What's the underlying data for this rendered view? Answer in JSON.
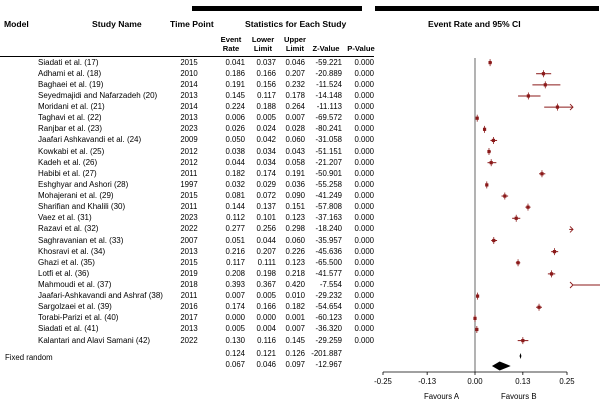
{
  "headers": {
    "model": "Model",
    "study_name": "Study Name",
    "time_point": "Time Point",
    "stats": "Statistics for Each Study",
    "ci": "Event Rate and 95% CI",
    "event_rate": [
      "Event",
      "Rate"
    ],
    "lower_limit": [
      "Lower",
      "Limit"
    ],
    "upper_limit": [
      "Upper",
      "Limit"
    ],
    "z_value": "Z-Value",
    "p_value": "P-Value"
  },
  "studies": [
    {
      "name": "Siadati et al. (17)",
      "year": "2015",
      "er": "0.041",
      "ll": "0.037",
      "ul": "0.046",
      "z": "-59.221",
      "p": "0.000"
    },
    {
      "name": "Adhami et al. (18)",
      "year": "2010",
      "er": "0.186",
      "ll": "0.166",
      "ul": "0.207",
      "z": "-20.889",
      "p": "0.000"
    },
    {
      "name": "Baghaei et al. (19)",
      "year": "2014",
      "er": "0.191",
      "ll": "0.156",
      "ul": "0.232",
      "z": "-11.524",
      "p": "0.000"
    },
    {
      "name": "Seyedmajidi and Nafarzadeh (20)",
      "year": "2013",
      "er": "0.145",
      "ll": "0.117",
      "ul": "0.178",
      "z": "-14.148",
      "p": "0.000"
    },
    {
      "name": "Moridani et al. (21)",
      "year": "2014",
      "er": "0.224",
      "ll": "0.188",
      "ul": "0.264",
      "z": "-11.113",
      "p": "0.000"
    },
    {
      "name": "Taghavi et al. (22)",
      "year": "2013",
      "er": "0.006",
      "ll": "0.005",
      "ul": "0.007",
      "z": "-69.572",
      "p": "0.000"
    },
    {
      "name": "Ranjbar et al. (23)",
      "year": "2023",
      "er": "0.026",
      "ll": "0.024",
      "ul": "0.028",
      "z": "-80.241",
      "p": "0.000"
    },
    {
      "name": "Jaafari Ashkavandi et al. (24)",
      "year": "2009",
      "er": "0.050",
      "ll": "0.042",
      "ul": "0.060",
      "z": "-31.058",
      "p": "0.000"
    },
    {
      "name": "Kowkabi et al. (25)",
      "year": "2012",
      "er": "0.038",
      "ll": "0.034",
      "ul": "0.043",
      "z": "-51.151",
      "p": "0.000"
    },
    {
      "name": "Kadeh et al. (26)",
      "year": "2012",
      "er": "0.044",
      "ll": "0.034",
      "ul": "0.058",
      "z": "-21.207",
      "p": "0.000"
    },
    {
      "name": "Habibi et al. (27)",
      "year": "2011",
      "er": "0.182",
      "ll": "0.174",
      "ul": "0.191",
      "z": "-50.901",
      "p": "0.000"
    },
    {
      "name": "Eshghyar and Ashori (28)",
      "year": "1997",
      "er": "0.032",
      "ll": "0.029",
      "ul": "0.036",
      "z": "-55.258",
      "p": "0.000"
    },
    {
      "name": "Mohajerani et al. (29)",
      "year": "2015",
      "er": "0.081",
      "ll": "0.072",
      "ul": "0.090",
      "z": "-41.249",
      "p": "0.000"
    },
    {
      "name": "Sharifian and Khalili (30)",
      "year": "2011",
      "er": "0.144",
      "ll": "0.137",
      "ul": "0.151",
      "z": "-57.808",
      "p": "0.000"
    },
    {
      "name": "Vaez et al. (31)",
      "year": "2023",
      "er": "0.112",
      "ll": "0.101",
      "ul": "0.123",
      "z": "-37.163",
      "p": "0.000"
    },
    {
      "name": "Razavi et al. (32)",
      "year": "2022",
      "er": "0.277",
      "ll": "0.256",
      "ul": "0.298",
      "z": "-18.240",
      "p": "0.000"
    },
    {
      "name": "Saghravanian et al. (33)",
      "year": "2007",
      "er": "0.051",
      "ll": "0.044",
      "ul": "0.060",
      "z": "-35.957",
      "p": "0.000"
    },
    {
      "name": "Khosravi et al. (34)",
      "year": "2013",
      "er": "0.216",
      "ll": "0.207",
      "ul": "0.226",
      "z": "-45.636",
      "p": "0.000"
    },
    {
      "name": "Ghazi et al. (35)",
      "year": "2015",
      "er": "0.117",
      "ll": "0.111",
      "ul": "0.123",
      "z": "-65.500",
      "p": "0.000"
    },
    {
      "name": "Lotfi et al. (36)",
      "year": "2019",
      "er": "0.208",
      "ll": "0.198",
      "ul": "0.218",
      "z": "-41.577",
      "p": "0.000"
    },
    {
      "name": "Mahmoudi et al. (37)",
      "year": "2018",
      "er": "0.393",
      "ll": "0.367",
      "ul": "0.420",
      "z": "-7.554",
      "p": "0.000"
    },
    {
      "name": "Jaafari-Ashkavandi and Ashraf (38)",
      "year": "2011",
      "er": "0.007",
      "ll": "0.005",
      "ul": "0.010",
      "z": "-29.232",
      "p": "0.000"
    },
    {
      "name": "Sargolzaei et al. (39)",
      "year": "2016",
      "er": "0.174",
      "ll": "0.166",
      "ul": "0.182",
      "z": "-54.654",
      "p": "0.000"
    },
    {
      "name": "Torabi-Parizi et al. (40)",
      "year": "2017",
      "er": "0.000",
      "ll": "0.000",
      "ul": "0.001",
      "z": "-60.123",
      "p": "0.000"
    },
    {
      "name": "Siadati et al. (41)",
      "year": "2013",
      "er": "0.005",
      "ll": "0.004",
      "ul": "0.007",
      "z": "-36.320",
      "p": "0.000"
    },
    {
      "name": "Kalantari and Alavi Samani (42)",
      "year": "2022",
      "er": "0.130",
      "ll": "0.116",
      "ul": "0.145",
      "z": "-29.259",
      "p": "0.000"
    }
  ],
  "summary": {
    "label": "Fixed random",
    "fixed": {
      "er": "0.124",
      "ll": "0.121",
      "ul": "0.126",
      "z": "-201.887"
    },
    "random": {
      "er": "0.067",
      "ll": "0.046",
      "ul": "0.097",
      "z": "-12.967"
    }
  },
  "axis": {
    "ticks": [
      "-0.25",
      "-0.13",
      "0.00",
      "0.13",
      "0.25"
    ],
    "favours_a": "Favours A",
    "favours_b": "Favours B"
  },
  "colors": {
    "marker": "#8b1a1a",
    "line": "#000000"
  },
  "chart_data": {
    "type": "forest",
    "title": "Event Rate and 95% CI",
    "xlim": [
      -0.25,
      0.25
    ],
    "xticks": [
      -0.25,
      -0.13,
      0.0,
      0.13,
      0.25
    ],
    "measure": "event rate",
    "categories": [
      "Siadati et al. (17)",
      "Adhami et al. (18)",
      "Baghaei et al. (19)",
      "Seyedmajidi and Nafarzadeh (20)",
      "Moridani et al. (21)",
      "Taghavi et al. (22)",
      "Ranjbar et al. (23)",
      "Jaafari Ashkavandi et al. (24)",
      "Kowkabi et al. (25)",
      "Kadeh et al. (26)",
      "Habibi et al. (27)",
      "Eshghyar and Ashori (28)",
      "Mohajerani et al. (29)",
      "Sharifian and Khalili (30)",
      "Vaez et al. (31)",
      "Razavi et al. (32)",
      "Saghravanian et al. (33)",
      "Khosravi et al. (34)",
      "Ghazi et al. (35)",
      "Lotfi et al. (36)",
      "Mahmoudi et al. (37)",
      "Jaafari-Ashkavandi and Ashraf (38)",
      "Sargolzaei et al. (39)",
      "Torabi-Parizi et al. (40)",
      "Siadati et al. (41)",
      "Kalantari and Alavi Samani (42)"
    ],
    "event_rate": [
      0.041,
      0.186,
      0.191,
      0.145,
      0.224,
      0.006,
      0.026,
      0.05,
      0.038,
      0.044,
      0.182,
      0.032,
      0.081,
      0.144,
      0.112,
      0.277,
      0.051,
      0.216,
      0.117,
      0.208,
      0.393,
      0.007,
      0.174,
      0.0,
      0.005,
      0.13
    ],
    "lower": [
      0.037,
      0.166,
      0.156,
      0.117,
      0.188,
      0.005,
      0.024,
      0.042,
      0.034,
      0.034,
      0.174,
      0.029,
      0.072,
      0.137,
      0.101,
      0.256,
      0.044,
      0.207,
      0.111,
      0.198,
      0.367,
      0.005,
      0.166,
      0.0,
      0.004,
      0.116
    ],
    "upper": [
      0.046,
      0.207,
      0.232,
      0.178,
      0.264,
      0.007,
      0.028,
      0.06,
      0.043,
      0.058,
      0.191,
      0.036,
      0.09,
      0.151,
      0.123,
      0.298,
      0.06,
      0.226,
      0.123,
      0.218,
      0.42,
      0.01,
      0.182,
      0.001,
      0.007,
      0.145
    ],
    "pooled_fixed": {
      "er": 0.124,
      "lower": 0.121,
      "upper": 0.126
    },
    "pooled_random": {
      "er": 0.067,
      "lower": 0.046,
      "upper": 0.097
    },
    "xlabel_left": "Favours A",
    "xlabel_right": "Favours B"
  }
}
